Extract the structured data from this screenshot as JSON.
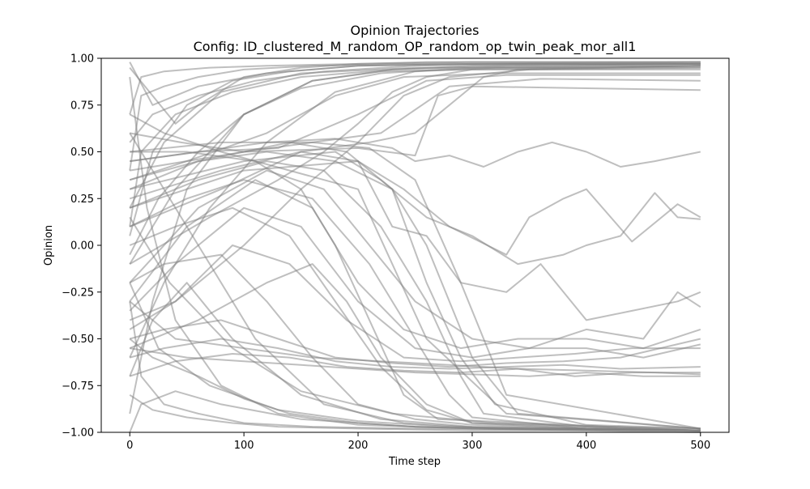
{
  "chart_data": {
    "type": "line",
    "title": "Opinion Trajectories",
    "subtitle": "Config: ID_clustered_M_random_OP_random_op_twin_peak_mor_all1",
    "xlabel": "Time step",
    "ylabel": "Opinion",
    "xlim": [
      -25,
      525
    ],
    "ylim": [
      -1.0,
      1.0
    ],
    "xticks": [
      0,
      100,
      200,
      300,
      400,
      500
    ],
    "xtick_labels": [
      "0",
      "100",
      "200",
      "300",
      "400",
      "500"
    ],
    "yticks": [
      -1.0,
      -0.75,
      -0.5,
      -0.25,
      0.0,
      0.25,
      0.5,
      0.75,
      1.0
    ],
    "ytick_labels": [
      "−1.00",
      "−0.75",
      "−0.50",
      "−0.25",
      "0.00",
      "0.25",
      "0.50",
      "0.75",
      "1.00"
    ],
    "grid": false,
    "legend": "none",
    "line_color": "#808080",
    "line_opacity": 0.5,
    "series": [
      {
        "x": [
          0,
          20,
          60,
          120,
          200,
          300,
          400,
          500
        ],
        "values": [
          0.98,
          0.75,
          0.85,
          0.92,
          0.96,
          0.97,
          0.97,
          0.97
        ]
      },
      {
        "x": [
          0,
          30,
          80,
          150,
          250,
          350,
          500
        ],
        "values": [
          0.2,
          0.55,
          0.82,
          0.92,
          0.95,
          0.95,
          0.95
        ]
      },
      {
        "x": [
          0,
          40,
          100,
          160,
          220,
          300,
          500
        ],
        "values": [
          -0.1,
          0.3,
          0.7,
          0.88,
          0.93,
          0.94,
          0.94
        ]
      },
      {
        "x": [
          0,
          50,
          120,
          180,
          240,
          320,
          500
        ],
        "values": [
          0.35,
          0.45,
          0.6,
          0.8,
          0.9,
          0.92,
          0.92
        ]
      },
      {
        "x": [
          0,
          60,
          130,
          200,
          260,
          330,
          500
        ],
        "values": [
          0.45,
          0.5,
          0.52,
          0.7,
          0.88,
          0.91,
          0.91
        ]
      },
      {
        "x": [
          0,
          80,
          160,
          220,
          280,
          360,
          500
        ],
        "values": [
          0.5,
          0.55,
          0.55,
          0.6,
          0.85,
          0.89,
          0.88
        ]
      },
      {
        "x": [
          0,
          100,
          200,
          250,
          270,
          300,
          400,
          500
        ],
        "values": [
          0.4,
          0.5,
          0.52,
          0.48,
          0.8,
          0.85,
          0.84,
          0.83
        ]
      },
      {
        "x": [
          0,
          20,
          40,
          60,
          100,
          150,
          200,
          260,
          300,
          500
        ],
        "values": [
          0.95,
          0.8,
          0.65,
          0.75,
          0.9,
          0.95,
          0.97,
          0.98,
          0.98,
          0.98
        ]
      },
      {
        "x": [
          0,
          120,
          180,
          230,
          250,
          280,
          310,
          340,
          370,
          400,
          430,
          460,
          500
        ],
        "values": [
          0.45,
          0.55,
          0.57,
          0.52,
          0.45,
          0.48,
          0.42,
          0.5,
          0.55,
          0.5,
          0.42,
          0.45,
          0.5
        ]
      },
      {
        "x": [
          0,
          100,
          180,
          220,
          260,
          300,
          340,
          380,
          400,
          430,
          460,
          480,
          500
        ],
        "values": [
          0.3,
          0.45,
          0.5,
          0.35,
          0.15,
          0.05,
          -0.1,
          -0.05,
          0.0,
          0.05,
          0.28,
          0.15,
          0.14
        ]
      },
      {
        "x": [
          0,
          100,
          200,
          240,
          280,
          330,
          350,
          380,
          400,
          440,
          480,
          500
        ],
        "values": [
          0.2,
          0.4,
          0.45,
          0.3,
          0.1,
          -0.05,
          0.15,
          0.25,
          0.3,
          0.02,
          0.22,
          0.15
        ]
      },
      {
        "x": [
          0,
          80,
          150,
          200,
          230,
          260,
          290,
          330,
          360,
          400,
          440,
          480,
          500
        ],
        "values": [
          0.1,
          0.3,
          0.5,
          0.45,
          0.1,
          0.05,
          -0.2,
          -0.25,
          -0.1,
          -0.4,
          -0.35,
          -0.3,
          -0.25
        ]
      },
      {
        "x": [
          0,
          60,
          120,
          170,
          210,
          250,
          300,
          350,
          400,
          450,
          480,
          500
        ],
        "values": [
          -0.2,
          0.2,
          0.4,
          0.3,
          0.0,
          -0.3,
          -0.5,
          -0.55,
          -0.45,
          -0.5,
          -0.25,
          -0.33
        ]
      },
      {
        "x": [
          0,
          50,
          110,
          160,
          200,
          240,
          290,
          340,
          400,
          450,
          500
        ],
        "values": [
          -0.3,
          0.1,
          0.35,
          0.2,
          -0.2,
          -0.45,
          -0.55,
          -0.5,
          -0.5,
          -0.55,
          -0.45
        ]
      },
      {
        "x": [
          0,
          40,
          100,
          150,
          200,
          250,
          300,
          350,
          400,
          450,
          500
        ],
        "values": [
          -0.35,
          -0.1,
          0.2,
          0.1,
          -0.3,
          -0.55,
          -0.6,
          -0.55,
          -0.55,
          -0.6,
          -0.53
        ]
      },
      {
        "x": [
          0,
          40,
          90,
          140,
          190,
          240,
          290,
          340,
          390,
          440,
          500
        ],
        "values": [
          -0.45,
          -0.3,
          0.0,
          -0.1,
          -0.4,
          -0.6,
          -0.62,
          -0.6,
          -0.58,
          -0.55,
          -0.55
        ]
      },
      {
        "x": [
          0,
          30,
          80,
          130,
          180,
          230,
          280,
          330,
          380,
          430,
          500
        ],
        "values": [
          -0.5,
          -0.45,
          -0.4,
          -0.5,
          -0.6,
          -0.63,
          -0.65,
          -0.63,
          -0.62,
          -0.6,
          -0.5
        ]
      },
      {
        "x": [
          0,
          30,
          80,
          130,
          180,
          230,
          280,
          330,
          380,
          430,
          500
        ],
        "values": [
          -0.6,
          -0.55,
          -0.5,
          -0.55,
          -0.62,
          -0.65,
          -0.66,
          -0.65,
          -0.64,
          -0.66,
          -0.65
        ]
      },
      {
        "x": [
          0,
          40,
          90,
          140,
          190,
          240,
          290,
          340,
          390,
          440,
          500
        ],
        "values": [
          -0.7,
          -0.62,
          -0.58,
          -0.6,
          -0.65,
          -0.67,
          -0.68,
          -0.66,
          -0.7,
          -0.68,
          -0.68
        ]
      },
      {
        "x": [
          0,
          50,
          100,
          150,
          200,
          250,
          300,
          350,
          400,
          450,
          500
        ],
        "values": [
          -0.55,
          -0.6,
          -0.62,
          -0.64,
          -0.66,
          -0.68,
          -0.69,
          -0.7,
          -0.68,
          -0.7,
          -0.7
        ]
      },
      {
        "x": [
          0,
          40,
          100,
          160,
          220,
          280,
          340,
          400,
          460,
          500
        ],
        "values": [
          -0.3,
          -0.5,
          -0.55,
          -0.6,
          -0.62,
          -0.64,
          -0.66,
          -0.67,
          -0.68,
          -0.69
        ]
      },
      {
        "x": [
          0,
          60,
          120,
          180,
          230,
          260,
          290,
          320,
          400,
          500
        ],
        "values": [
          0.3,
          0.45,
          0.5,
          0.45,
          0.3,
          -0.2,
          -0.6,
          -0.85,
          -0.96,
          -0.98
        ]
      },
      {
        "x": [
          0,
          60,
          120,
          170,
          220,
          260,
          290,
          310,
          400,
          500
        ],
        "values": [
          0.2,
          0.35,
          0.45,
          0.4,
          0.1,
          -0.3,
          -0.7,
          -0.9,
          -0.97,
          -0.99
        ]
      },
      {
        "x": [
          0,
          50,
          100,
          160,
          210,
          250,
          280,
          300,
          400,
          500
        ],
        "values": [
          0.1,
          0.25,
          0.35,
          0.25,
          -0.1,
          -0.5,
          -0.8,
          -0.92,
          -0.98,
          -0.99
        ]
      },
      {
        "x": [
          0,
          40,
          90,
          140,
          180,
          220,
          260,
          300,
          400,
          500
        ],
        "values": [
          0.0,
          0.1,
          0.2,
          0.05,
          -0.3,
          -0.65,
          -0.88,
          -0.95,
          -0.98,
          -0.99
        ]
      },
      {
        "x": [
          0,
          30,
          80,
          120,
          160,
          200,
          250,
          300,
          400,
          500
        ],
        "values": [
          -0.2,
          -0.1,
          -0.05,
          -0.3,
          -0.6,
          -0.85,
          -0.93,
          -0.96,
          -0.98,
          -0.99
        ]
      },
      {
        "x": [
          0,
          20,
          60,
          100,
          140,
          200,
          250,
          300,
          400,
          500
        ],
        "values": [
          -0.5,
          -0.6,
          -0.7,
          -0.82,
          -0.9,
          -0.95,
          -0.97,
          -0.98,
          -0.99,
          -0.99
        ]
      },
      {
        "x": [
          0,
          20,
          50,
          90,
          130,
          200,
          300,
          400,
          500
        ],
        "values": [
          -0.8,
          -0.88,
          -0.92,
          -0.95,
          -0.97,
          -0.98,
          -0.99,
          -0.99,
          -1.0
        ]
      },
      {
        "x": [
          0,
          10,
          40,
          80,
          150,
          250,
          350,
          500
        ],
        "values": [
          -1.0,
          -0.85,
          -0.78,
          -0.85,
          -0.93,
          -0.97,
          -0.98,
          -0.99
        ]
      },
      {
        "x": [
          0,
          15,
          40,
          80,
          130,
          200,
          300,
          500
        ],
        "values": [
          0.9,
          0.2,
          -0.4,
          -0.75,
          -0.9,
          -0.96,
          -0.98,
          -0.99
        ]
      },
      {
        "x": [
          0,
          20,
          60,
          110,
          170,
          240,
          320,
          500
        ],
        "values": [
          0.6,
          0.4,
          0.0,
          -0.5,
          -0.85,
          -0.95,
          -0.98,
          -0.99
        ]
      },
      {
        "x": [
          0,
          30,
          80,
          140,
          200,
          260,
          330,
          500
        ],
        "values": [
          0.7,
          0.6,
          0.5,
          0.4,
          0.3,
          -0.5,
          -0.9,
          -0.98
        ]
      },
      {
        "x": [
          0,
          20,
          50,
          100,
          160,
          230,
          300,
          500
        ],
        "values": [
          -0.9,
          -0.3,
          0.3,
          0.7,
          0.88,
          0.94,
          0.96,
          0.97
        ]
      },
      {
        "x": [
          0,
          30,
          70,
          120,
          180,
          250,
          320,
          500
        ],
        "values": [
          -0.6,
          -0.2,
          0.2,
          0.55,
          0.82,
          0.93,
          0.95,
          0.96
        ]
      },
      {
        "x": [
          0,
          40,
          100,
          150,
          200,
          240,
          280,
          350,
          500
        ],
        "values": [
          -0.4,
          -0.3,
          0.0,
          0.3,
          0.55,
          0.8,
          0.9,
          0.94,
          0.95
        ]
      },
      {
        "x": [
          0,
          20,
          50,
          90,
          140,
          200,
          300,
          500
        ],
        "values": [
          0.05,
          0.5,
          0.75,
          0.88,
          0.93,
          0.96,
          0.97,
          0.98
        ]
      },
      {
        "x": [
          0,
          10,
          30,
          60,
          100,
          160,
          250,
          500
        ],
        "values": [
          0.4,
          0.8,
          0.85,
          0.9,
          0.94,
          0.96,
          0.97,
          0.97
        ]
      },
      {
        "x": [
          0,
          10,
          30,
          60,
          100,
          160,
          250,
          500
        ],
        "values": [
          -0.3,
          -0.7,
          -0.85,
          -0.9,
          -0.95,
          -0.97,
          -0.98,
          -0.99
        ]
      },
      {
        "x": [
          0,
          50,
          110,
          150,
          180,
          210,
          240,
          270,
          500
        ],
        "values": [
          0.5,
          0.5,
          0.45,
          0.3,
          0.0,
          -0.4,
          -0.8,
          -0.93,
          -0.99
        ]
      },
      {
        "x": [
          0,
          60,
          140,
          190,
          230,
          260,
          300,
          340,
          500
        ],
        "values": [
          0.35,
          0.45,
          0.55,
          0.5,
          0.3,
          0.0,
          -0.6,
          -0.9,
          -0.98
        ]
      },
      {
        "x": [
          0,
          70,
          130,
          170,
          200,
          230,
          260,
          300,
          500
        ],
        "values": [
          -0.1,
          0.15,
          0.35,
          0.5,
          0.65,
          0.82,
          0.9,
          0.94,
          0.96
        ]
      },
      {
        "x": [
          0,
          80,
          150,
          210,
          250,
          280,
          310,
          340,
          500
        ],
        "values": [
          0.25,
          0.4,
          0.5,
          0.55,
          0.6,
          0.75,
          0.9,
          0.94,
          0.96
        ]
      },
      {
        "x": [
          0,
          60,
          120,
          160,
          190,
          220,
          260,
          300,
          500
        ],
        "values": [
          -0.55,
          -0.4,
          -0.2,
          -0.1,
          -0.3,
          -0.6,
          -0.85,
          -0.95,
          -0.99
        ]
      },
      {
        "x": [
          0,
          20,
          50,
          90,
          150,
          220,
          300,
          500
        ],
        "values": [
          -0.7,
          -0.4,
          -0.2,
          -0.5,
          -0.8,
          -0.93,
          -0.97,
          -0.99
        ]
      },
      {
        "x": [
          0,
          10,
          30,
          70,
          120,
          200,
          300,
          500
        ],
        "values": [
          0.7,
          0.9,
          0.93,
          0.95,
          0.96,
          0.97,
          0.98,
          0.98
        ]
      },
      {
        "x": [
          0,
          10,
          40,
          90,
          150,
          230,
          330,
          500
        ],
        "values": [
          0.1,
          0.5,
          0.7,
          0.82,
          0.9,
          0.94,
          0.96,
          0.97
        ]
      },
      {
        "x": [
          0,
          25,
          70,
          130,
          200,
          280,
          380,
          500
        ],
        "values": [
          -0.2,
          -0.55,
          -0.75,
          -0.88,
          -0.94,
          -0.97,
          -0.98,
          -0.99
        ]
      },
      {
        "x": [
          0,
          35,
          90,
          150,
          230,
          320,
          420,
          500
        ],
        "values": [
          0.15,
          -0.2,
          -0.55,
          -0.78,
          -0.9,
          -0.95,
          -0.97,
          -0.98
        ]
      },
      {
        "x": [
          0,
          20,
          60,
          110,
          170,
          250,
          350,
          500
        ],
        "values": [
          0.55,
          0.7,
          0.8,
          0.88,
          0.93,
          0.96,
          0.97,
          0.97
        ]
      },
      {
        "x": [
          0,
          25,
          60,
          100,
          150,
          220,
          300,
          420,
          500
        ],
        "values": [
          -0.05,
          0.25,
          0.5,
          0.7,
          0.84,
          0.92,
          0.95,
          0.96,
          0.96
        ]
      },
      {
        "x": [
          0,
          45,
          100,
          160,
          210,
          250,
          290,
          330,
          500
        ],
        "values": [
          0.6,
          0.55,
          0.5,
          0.55,
          0.52,
          0.35,
          -0.2,
          -0.8,
          -0.98
        ]
      }
    ]
  }
}
